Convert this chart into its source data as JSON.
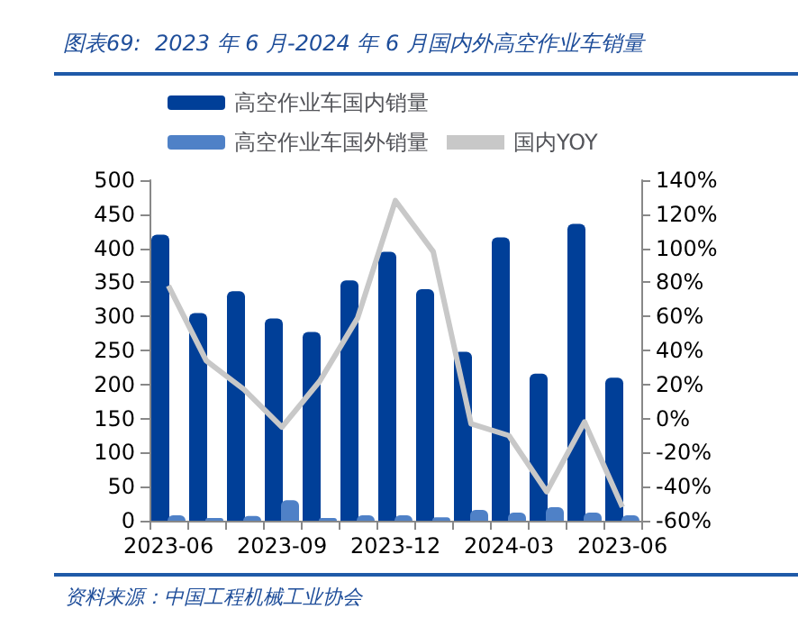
{
  "chart_data": {
    "type": "bar",
    "title": "图表69:  2023 年 6 月-2024 年 6 月国内外高空作业车销量",
    "categories": [
      "2023-06",
      null,
      null,
      "2023-09",
      null,
      null,
      "2023-12",
      null,
      null,
      "2024-03",
      null,
      null,
      "2023-06"
    ],
    "series": [
      {
        "name": "高空作业车国内销量",
        "color": "#003f98",
        "values": [
          420,
          305,
          337,
          297,
          277,
          353,
          395,
          340,
          248,
          416,
          216,
          436,
          210
        ]
      },
      {
        "name": "高空作业车国外销量",
        "color": "#4f81c7",
        "values": [
          8,
          4,
          7,
          30,
          4,
          8,
          8,
          5,
          16,
          12,
          20,
          12,
          8
        ]
      },
      {
        "name": "国内YOY",
        "type": "line",
        "axis": "y2",
        "color": "#c8c8c8",
        "values": [
          78,
          34,
          17,
          -5,
          22,
          59,
          128,
          98,
          -3,
          -10,
          -43,
          -2,
          -52
        ]
      }
    ],
    "ylim": [
      0,
      500
    ],
    "yticks": [
      0,
      50,
      100,
      150,
      200,
      250,
      300,
      350,
      400,
      450,
      500
    ],
    "y2lim": [
      -60,
      140
    ],
    "y2ticks": [
      {
        "value": -60,
        "label": "-60%"
      },
      {
        "value": -40,
        "label": "-40%"
      },
      {
        "value": -20,
        "label": "-20%"
      },
      {
        "value": 0,
        "label": "0%"
      },
      {
        "value": 20,
        "label": "20%"
      },
      {
        "value": 40,
        "label": "40%"
      },
      {
        "value": 60,
        "label": "60%"
      },
      {
        "value": 80,
        "label": "80%"
      },
      {
        "value": 100,
        "label": "100%"
      },
      {
        "value": 120,
        "label": "120%"
      },
      {
        "value": 140,
        "label": "140%"
      }
    ],
    "legend": "top",
    "grid": false,
    "marker": "none",
    "annotations": [
      "资料来源：中国工程机械工业协会"
    ]
  }
}
